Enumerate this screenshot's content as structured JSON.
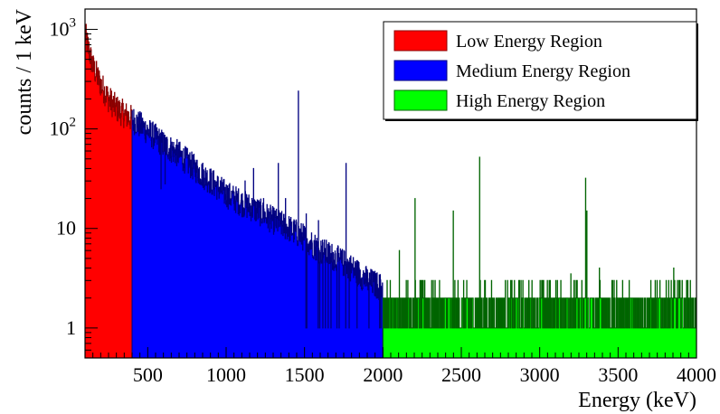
{
  "chart_data": {
    "type": "area",
    "title": "",
    "xlabel": "Energy (keV)",
    "ylabel": "counts / 1 keV",
    "xlim": [
      100,
      4000
    ],
    "ylim": [
      0.5,
      1600
    ],
    "y_scale": "log",
    "grid": false,
    "legend_position": "top-right",
    "x_ticks": [
      {
        "value": 500,
        "label": "500"
      },
      {
        "value": 1000,
        "label": "1000"
      },
      {
        "value": 1500,
        "label": "1500"
      },
      {
        "value": 2000,
        "label": "2000"
      },
      {
        "value": 2500,
        "label": "2500"
      },
      {
        "value": 3000,
        "label": "3000"
      },
      {
        "value": 3500,
        "label": "3500"
      },
      {
        "value": 4000,
        "label": "4000"
      }
    ],
    "y_ticks": [
      {
        "value": 1,
        "base": "1",
        "exp": ""
      },
      {
        "value": 10,
        "base": "10",
        "exp": ""
      },
      {
        "value": 100,
        "base": "10",
        "exp": "2"
      },
      {
        "value": 1000,
        "base": "10",
        "exp": "3"
      }
    ],
    "series": [
      {
        "name": "Low Energy Region",
        "range": [
          100,
          400
        ],
        "fill": "#ff0000",
        "line": "#8b0000",
        "points": [
          [
            100,
            900
          ],
          [
            120,
            650
          ],
          [
            150,
            420
          ],
          [
            200,
            280
          ],
          [
            250,
            200
          ],
          [
            300,
            160
          ],
          [
            350,
            140
          ],
          [
            400,
            125
          ]
        ]
      },
      {
        "name": "Medium Energy Region",
        "range": [
          400,
          2000
        ],
        "fill": "#0000ff",
        "line": "#000080",
        "points": [
          [
            400,
            125
          ],
          [
            500,
            95
          ],
          [
            600,
            70
          ],
          [
            700,
            55
          ],
          [
            800,
            40
          ],
          [
            900,
            30
          ],
          [
            1000,
            22
          ],
          [
            1100,
            18
          ],
          [
            1200,
            15
          ],
          [
            1300,
            12
          ],
          [
            1400,
            10
          ],
          [
            1500,
            8
          ],
          [
            1600,
            6
          ],
          [
            1700,
            5
          ],
          [
            1800,
            4
          ],
          [
            1900,
            3
          ],
          [
            2000,
            2.5
          ]
        ],
        "peaks": [
          [
            583,
            25
          ],
          [
            610,
            28
          ],
          [
            911,
            22
          ],
          [
            1120,
            30
          ],
          [
            1173,
            40
          ],
          [
            1238,
            20
          ],
          [
            1332,
            45
          ],
          [
            1377,
            20
          ],
          [
            1460,
            240
          ],
          [
            1509,
            14
          ],
          [
            1588,
            12
          ],
          [
            1764,
            45
          ]
        ]
      },
      {
        "name": "High Energy Region",
        "range": [
          2000,
          4000
        ],
        "fill": "#00ff00",
        "line": "#006400",
        "points": [
          [
            2000,
            2
          ],
          [
            2500,
            2
          ],
          [
            3000,
            2
          ],
          [
            3500,
            2
          ],
          [
            4000,
            2
          ]
        ],
        "peaks": [
          [
            2104,
            6
          ],
          [
            2204,
            20
          ],
          [
            2448,
            15
          ],
          [
            2615,
            52
          ],
          [
            3198,
            3.5
          ],
          [
            3291,
            32
          ],
          [
            3300,
            15
          ],
          [
            3380,
            4
          ],
          [
            3853,
            4
          ]
        ]
      }
    ]
  }
}
